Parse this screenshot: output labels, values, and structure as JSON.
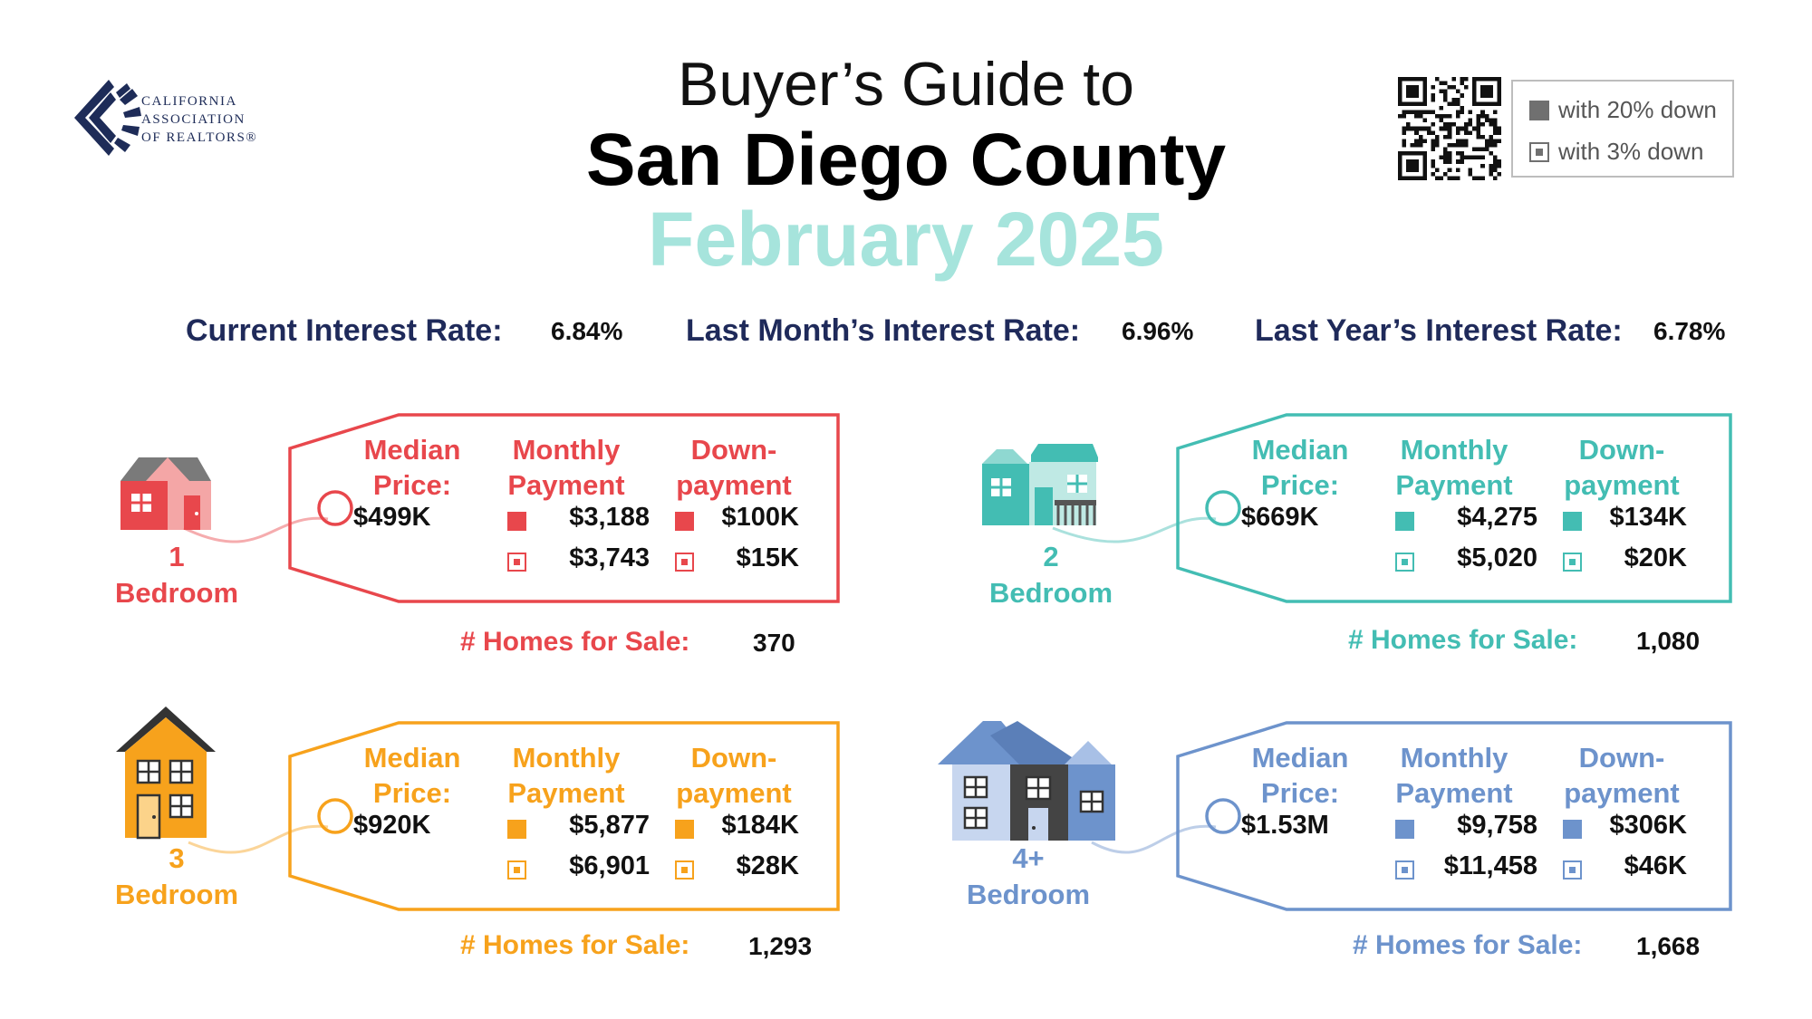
{
  "logo": {
    "line1": "CALIFORNIA",
    "line2": "ASSOCIATION",
    "line3": "OF REALTORS®"
  },
  "title": {
    "line1": "Buyer’s Guide to",
    "line2": "San Diego County",
    "line3": "February 2025"
  },
  "legend": {
    "item1": "with 20% down",
    "item2": "with 3% down"
  },
  "rates": {
    "current_label": "Current Interest Rate:",
    "current_value": "6.84%",
    "last_month_label": "Last Month’s Interest Rate:",
    "last_month_value": "6.96%",
    "last_year_label": "Last Year’s Interest Rate:",
    "last_year_value": "6.78%"
  },
  "headers": {
    "median": [
      "Median",
      "Price:"
    ],
    "monthly": [
      "Monthly",
      "Payment"
    ],
    "down": [
      "Down-",
      "payment"
    ],
    "homes_label": "# Homes for Sale:"
  },
  "colors": {
    "one": "#e8474c",
    "two": "#43bdb3",
    "three": "#f7a21c",
    "four": "#6d93cc",
    "title_accent": "#a6e4dc",
    "rates_label": "#1f2a5a"
  },
  "cards": {
    "one": {
      "bed_num": "1",
      "bed_word": "Bedroom",
      "median": "$499K",
      "monthly_20": "$3,188",
      "monthly_3": "$3,743",
      "down_20": "$100K",
      "down_3": "$15K",
      "homes": "370"
    },
    "two": {
      "bed_num": "2",
      "bed_word": "Bedroom",
      "median": "$669K",
      "monthly_20": "$4,275",
      "monthly_3": "$5,020",
      "down_20": "$134K",
      "down_3": "$20K",
      "homes": "1,080"
    },
    "three": {
      "bed_num": "3",
      "bed_word": "Bedroom",
      "median": "$920K",
      "monthly_20": "$5,877",
      "monthly_3": "$6,901",
      "down_20": "$184K",
      "down_3": "$28K",
      "homes": "1,293"
    },
    "four": {
      "bed_num": "4+",
      "bed_word": "Bedroom",
      "median": "$1.53M",
      "monthly_20": "$9,758",
      "monthly_3": "$11,458",
      "down_20": "$306K",
      "down_3": "$46K",
      "homes": "1,668"
    }
  }
}
